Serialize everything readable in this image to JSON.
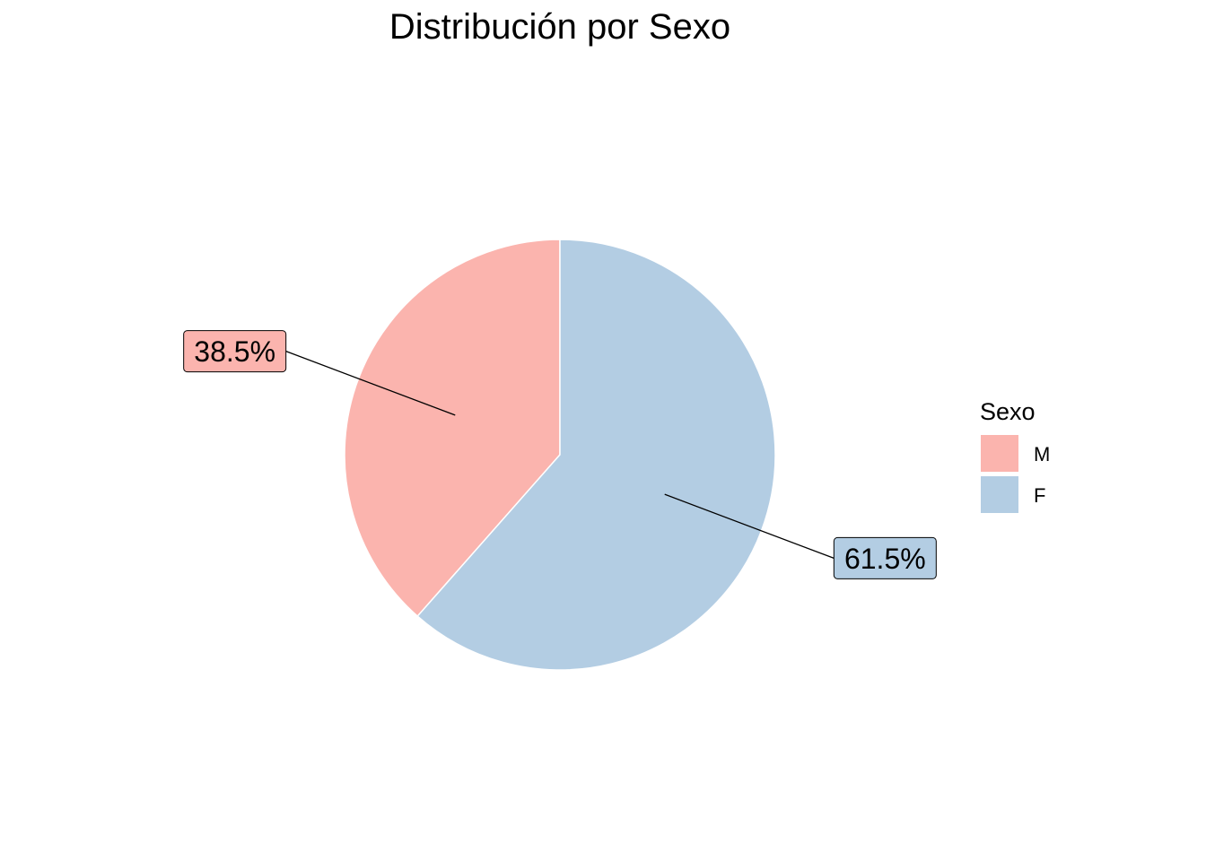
{
  "chart_data": {
    "type": "pie",
    "title": "Distribución por Sexo",
    "legend": {
      "title": "Sexo",
      "position": "right"
    },
    "slices": [
      {
        "label": "M",
        "value": 38.5,
        "value_label": "38.5%",
        "color": "#FBB4AE"
      },
      {
        "label": "F",
        "value": 61.5,
        "value_label": "61.5%",
        "color": "#B3CDE3"
      }
    ]
  }
}
